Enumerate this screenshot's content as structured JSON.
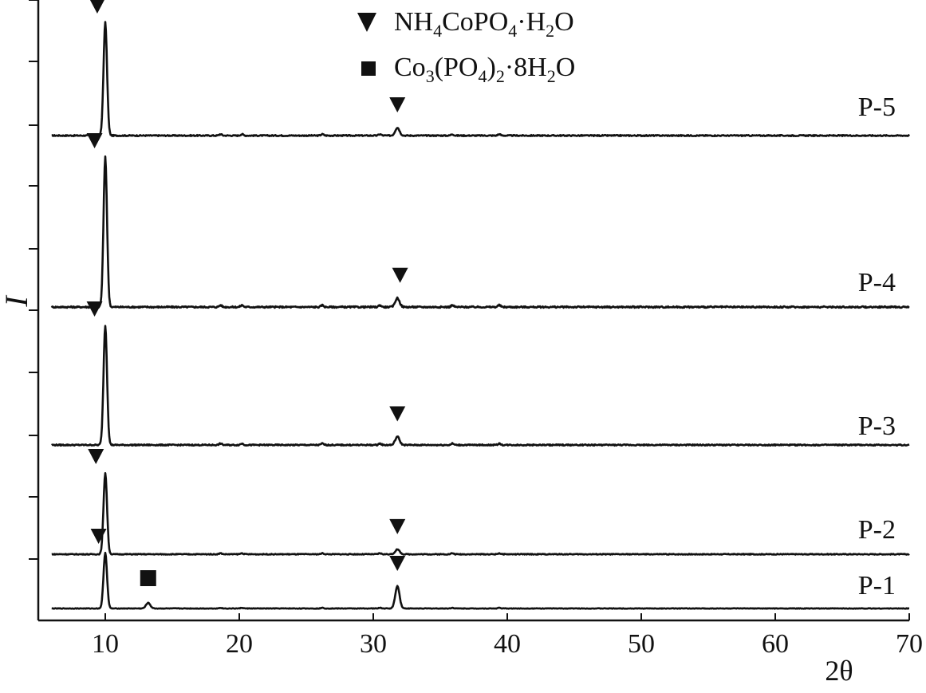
{
  "chart_data": {
    "type": "line",
    "title": "",
    "xlabel": "2θ",
    "ylabel": "I",
    "xlim": [
      5,
      70
    ],
    "x_ticks": [
      10,
      20,
      30,
      40,
      50,
      60,
      70
    ],
    "grid": false,
    "legend": {
      "placement": "top-center",
      "entries": [
        {
          "marker": "triangle-down",
          "phase": "NH4CoPO4·H2O",
          "parts": [
            [
              "NH",
              ""
            ],
            [
              "4",
              "sub"
            ],
            [
              "CoPO",
              ""
            ],
            [
              "4",
              "sub"
            ],
            [
              "·H",
              ""
            ],
            [
              "2",
              "sub"
            ],
            [
              "O",
              ""
            ]
          ]
        },
        {
          "marker": "square",
          "phase": "Co3(PO4)2·8H2O",
          "parts": [
            [
              "Co",
              ""
            ],
            [
              "3",
              "sub"
            ],
            [
              "(PO",
              ""
            ],
            [
              "4",
              "sub"
            ],
            [
              ")",
              ""
            ],
            [
              "2",
              "sub"
            ],
            [
              "·8H",
              ""
            ],
            [
              "2",
              "sub"
            ],
            [
              "O",
              ""
            ]
          ]
        }
      ]
    },
    "series": [
      {
        "name": "P-5",
        "peaks": [
          [
            10.0,
            1.0
          ],
          [
            31.8,
            0.07
          ]
        ],
        "markers": [
          {
            "type": "triangle-down",
            "x": 9.4
          },
          {
            "type": "triangle-down",
            "x": 31.8
          }
        ]
      },
      {
        "name": "P-4",
        "peaks": [
          [
            10.0,
            1.0
          ],
          [
            31.8,
            0.06
          ]
        ],
        "markers": [
          {
            "type": "triangle-down",
            "x": 9.2
          },
          {
            "type": "triangle-down",
            "x": 32.0
          }
        ]
      },
      {
        "name": "P-3",
        "peaks": [
          [
            10.0,
            1.0
          ],
          [
            31.8,
            0.07
          ]
        ],
        "markers": [
          {
            "type": "triangle-down",
            "x": 9.2
          },
          {
            "type": "triangle-down",
            "x": 31.8
          }
        ]
      },
      {
        "name": "P-2",
        "peaks": [
          [
            10.0,
            1.0
          ],
          [
            31.8,
            0.06
          ]
        ],
        "markers": [
          {
            "type": "triangle-down",
            "x": 9.3
          },
          {
            "type": "triangle-down",
            "x": 31.8
          }
        ]
      },
      {
        "name": "P-1",
        "peaks": [
          [
            10.0,
            1.0
          ],
          [
            13.2,
            0.1
          ],
          [
            31.8,
            0.4
          ]
        ],
        "markers": [
          {
            "type": "triangle-down",
            "x": 9.5
          },
          {
            "type": "square",
            "x": 13.2
          },
          {
            "type": "triangle-down",
            "x": 31.8
          }
        ]
      }
    ]
  }
}
